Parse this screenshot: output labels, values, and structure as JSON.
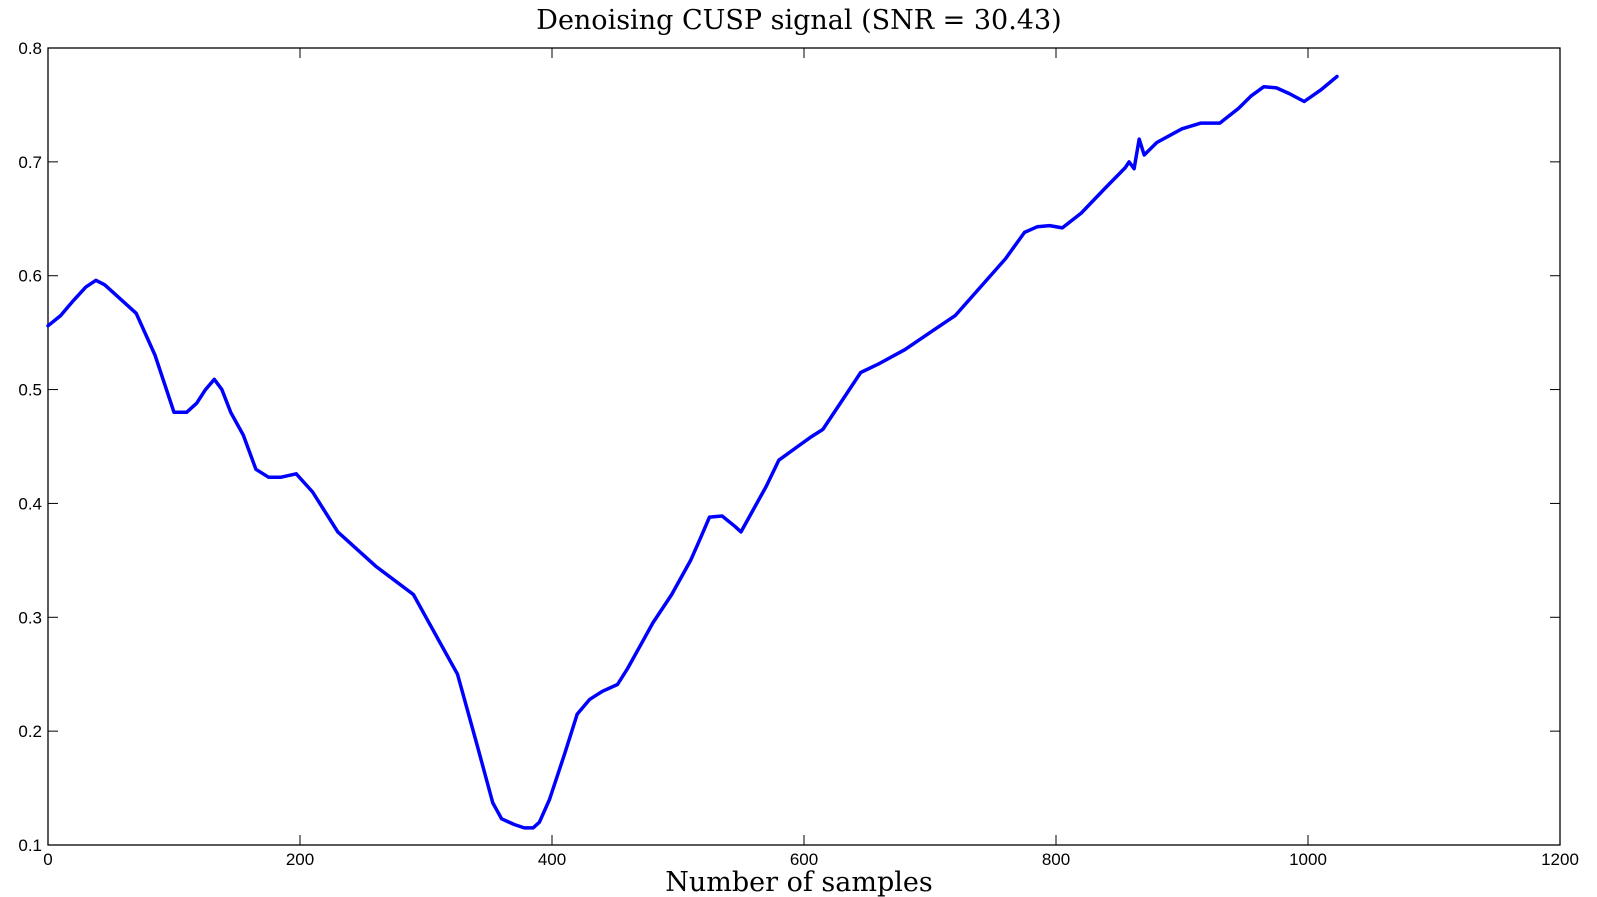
{
  "chart_data": {
    "type": "line",
    "title": "Denoising CUSP signal (SNR = 30.43)",
    "xlabel": "Number of samples",
    "ylabel": "",
    "xlim": [
      0,
      1200
    ],
    "ylim": [
      0.1,
      0.8
    ],
    "xticks": [
      0,
      200,
      400,
      600,
      800,
      1000,
      1200
    ],
    "yticks": [
      0.1,
      0.2,
      0.3,
      0.4,
      0.5,
      0.6,
      0.7,
      0.8
    ],
    "xtick_labels": [
      "0",
      "200",
      "400",
      "600",
      "800",
      "1000",
      "1200"
    ],
    "ytick_labels": [
      "0.1",
      "0.2",
      "0.3",
      "0.4",
      "0.5",
      "0.6",
      "0.7",
      "0.8"
    ],
    "grid": false,
    "series_color": "#0000ff",
    "series": [
      {
        "x": [
          0,
          10,
          20,
          30,
          38,
          45,
          55,
          70,
          85,
          100,
          110,
          118,
          125,
          132,
          138,
          145,
          155,
          165,
          175,
          185,
          197,
          210,
          230,
          260,
          290,
          300,
          310,
          325,
          340,
          353,
          360,
          370,
          378,
          385,
          390,
          398,
          410,
          420,
          430,
          440,
          452,
          460,
          470,
          480,
          495,
          510,
          518,
          525,
          535,
          545,
          550,
          560,
          570,
          580,
          595,
          605,
          615,
          630,
          645,
          660,
          680,
          700,
          720,
          740,
          760,
          775,
          785,
          795,
          805,
          820,
          840,
          855,
          858,
          862,
          866,
          870,
          880,
          900,
          915,
          930,
          945,
          955,
          965,
          975,
          985,
          997,
          1010,
          1023
        ],
        "y": [
          0.556,
          0.565,
          0.578,
          0.59,
          0.596,
          0.592,
          0.582,
          0.567,
          0.53,
          0.48,
          0.48,
          0.488,
          0.5,
          0.509,
          0.5,
          0.48,
          0.46,
          0.43,
          0.423,
          0.423,
          0.426,
          0.41,
          0.375,
          0.345,
          0.32,
          0.3,
          0.28,
          0.25,
          0.19,
          0.137,
          0.123,
          0.118,
          0.115,
          0.115,
          0.12,
          0.14,
          0.18,
          0.215,
          0.228,
          0.235,
          0.241,
          0.255,
          0.275,
          0.295,
          0.32,
          0.35,
          0.37,
          0.388,
          0.389,
          0.38,
          0.375,
          0.395,
          0.415,
          0.438,
          0.45,
          0.458,
          0.465,
          0.49,
          0.515,
          0.523,
          0.535,
          0.55,
          0.565,
          0.59,
          0.615,
          0.638,
          0.643,
          0.644,
          0.642,
          0.655,
          0.678,
          0.695,
          0.7,
          0.694,
          0.72,
          0.706,
          0.717,
          0.729,
          0.734,
          0.734,
          0.747,
          0.758,
          0.766,
          0.765,
          0.76,
          0.753,
          0.763,
          0.775
        ]
      }
    ]
  }
}
